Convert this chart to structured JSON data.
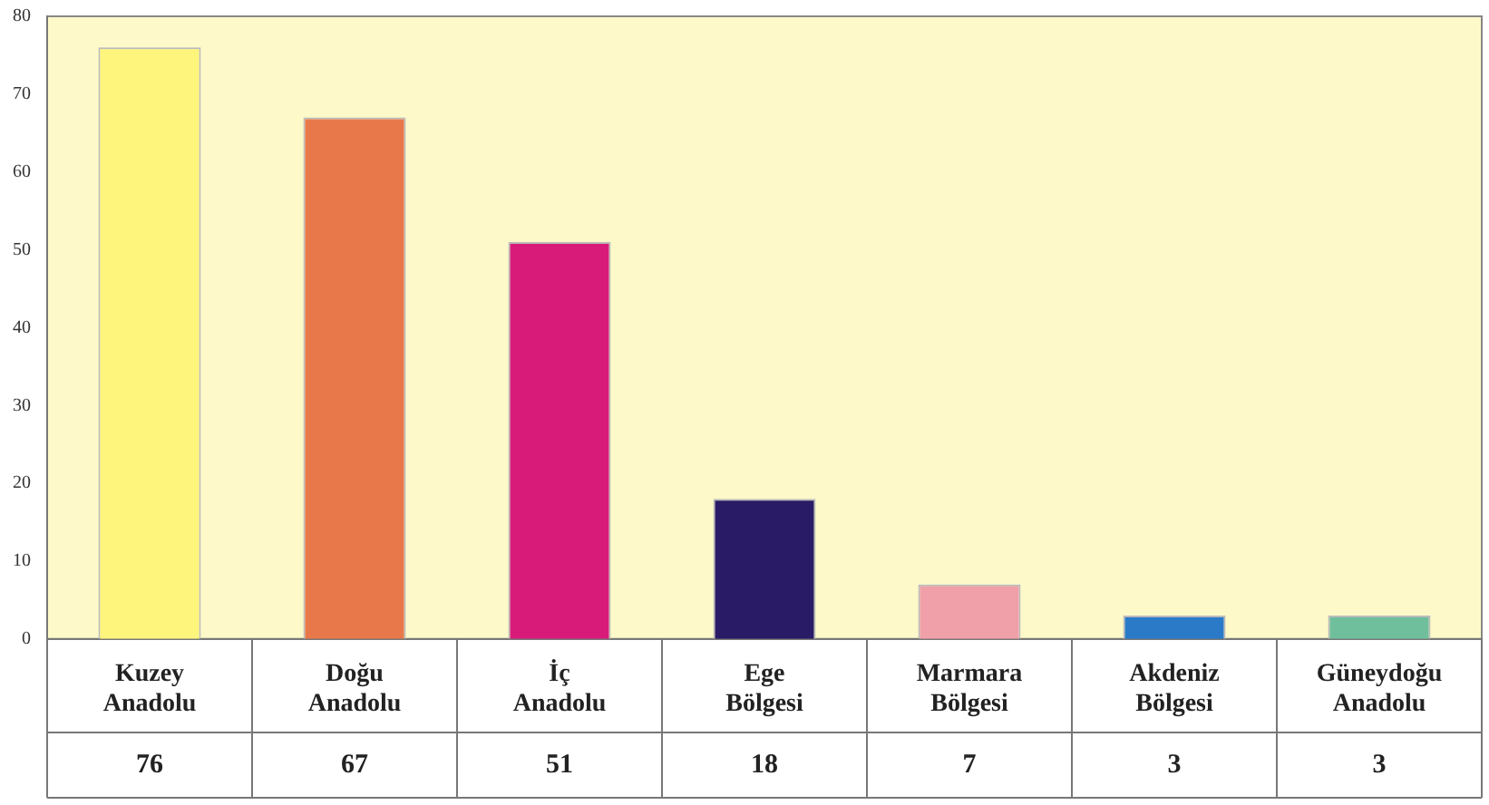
{
  "chart_data": {
    "type": "bar",
    "categories": [
      "Kuzey Anadolu",
      "Doğu Anadolu",
      "İç Anadolu",
      "Ege Bölgesi",
      "Marmara Bölgesi",
      "Akdeniz Bölgesi",
      "Güneydoğu Anadolu"
    ],
    "values": [
      76,
      67,
      51,
      18,
      7,
      3,
      3
    ],
    "colors": [
      "#fdf57c",
      "#e8784a",
      "#d81b78",
      "#2a1b66",
      "#f0a0a8",
      "#2a7ac8",
      "#6fbf9c"
    ],
    "ylim": [
      0,
      80
    ],
    "yticks": [
      0,
      10,
      20,
      30,
      40,
      50,
      60,
      70,
      80
    ],
    "grid": false,
    "legend": false,
    "data_labels": true
  }
}
